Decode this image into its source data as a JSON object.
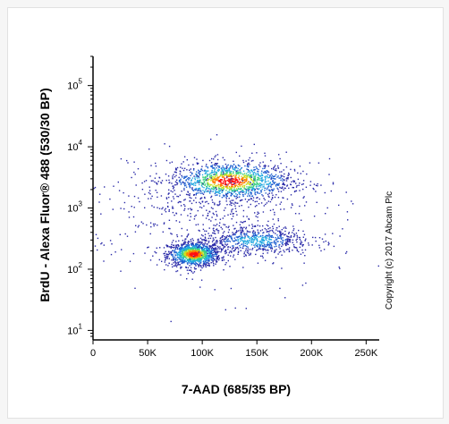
{
  "chart_data": {
    "type": "scatter",
    "title": "",
    "xlabel": "7-AAD (685/35 BP)",
    "ylabel": "BrdU - Alexa Fluor® 488 (530/30 BP)",
    "xlim": [
      0,
      262000
    ],
    "ylim": [
      7,
      300000
    ],
    "y_scale": "log",
    "grid": false,
    "x_ticks": [
      {
        "value": 0,
        "label": "0"
      },
      {
        "value": 50000,
        "label": "50K"
      },
      {
        "value": 100000,
        "label": "100K"
      },
      {
        "value": 150000,
        "label": "150K"
      },
      {
        "value": 200000,
        "label": "200K"
      },
      {
        "value": 250000,
        "label": "250K"
      }
    ],
    "y_ticks": [
      {
        "value": 10,
        "base": "10",
        "exp": "1"
      },
      {
        "value": 100,
        "base": "10",
        "exp": "2"
      },
      {
        "value": 1000,
        "base": "10",
        "exp": "3"
      },
      {
        "value": 10000,
        "base": "10",
        "exp": "4"
      },
      {
        "value": 100000,
        "base": "10",
        "exp": "5"
      }
    ],
    "populations": [
      {
        "x_center": 92000,
        "y_center": 180,
        "x_spread": 12000,
        "y_log_spread": 0.1,
        "n": 1100
      },
      {
        "x_center": 125000,
        "y_center": 2800,
        "x_spread": 28000,
        "y_log_spread": 0.16,
        "n": 1300
      },
      {
        "x_center": 148000,
        "y_center": 300,
        "x_spread": 26000,
        "y_log_spread": 0.12,
        "n": 650
      },
      {
        "x_center": 110000,
        "y_center": 1200,
        "x_spread": 45000,
        "y_log_spread": 0.35,
        "n": 260
      },
      {
        "x_center": 100000,
        "y_center": 500,
        "x_spread": 70000,
        "y_log_spread": 0.55,
        "n": 240
      }
    ],
    "density_colors": [
      "#2a2aa8",
      "#1f5fd0",
      "#22a9e0",
      "#3cd080",
      "#c8e020",
      "#ff8000",
      "#ff1010"
    ]
  },
  "copyright": "Copyright (c) 2017 Abcam Plc"
}
